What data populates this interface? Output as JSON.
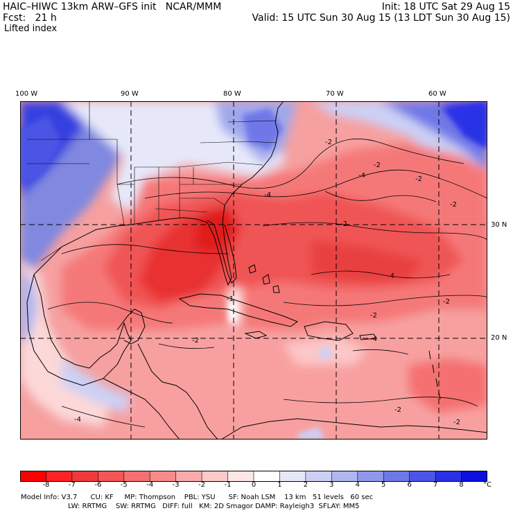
{
  "header": {
    "title_left": "HAIC–HIWC 13km ARW–GFS init   NCAR/MMM",
    "init_right": "Init: 18 UTC Sat 29 Aug 15",
    "fcst_left": "Fcst:   21 h",
    "valid_right": "Valid: 15 UTC Sun 30 Aug 15 (13 LDT Sun 30 Aug 15)",
    "field_name": "Lifted index"
  },
  "map": {
    "lon_labels": [
      "100 W",
      "90 W",
      "80 W",
      "70 W",
      "60 W"
    ],
    "lat_labels": [
      "30 N",
      "20 N"
    ],
    "contour_labels": [
      "-4",
      "-4",
      "-2",
      "-2",
      "-2",
      "-2",
      "-4",
      "-2",
      "-1",
      "-2",
      "-4",
      "-4",
      "-2",
      "-2",
      "-2",
      "-2"
    ]
  },
  "colorbar": {
    "tick_labels": [
      "-8",
      "-7",
      "-6",
      "-5",
      "-4",
      "-3",
      "-2",
      "-1",
      "0",
      "1",
      "2",
      "3",
      "4",
      "5",
      "6",
      "7",
      "8"
    ],
    "unit": "°C",
    "colors": [
      "#ff0000",
      "#ff2222",
      "#f03a3a",
      "#f55555",
      "#f57070",
      "#f88a8a",
      "#faaaaa",
      "#fcc8c8",
      "#fde6e6",
      "#ffffff",
      "#e6e8fa",
      "#ccd0f5",
      "#b0b6f0",
      "#9098ec",
      "#6f78e8",
      "#4c55e5",
      "#2a30e5",
      "#0b10e0"
    ]
  },
  "footer": {
    "line1": "Model Info: V3.7      CU: KF     MP: Thompson    PBL: YSU      SF: Noah LSM    13 km   51 levels   60 sec",
    "line2": "LW: RRTMG    SW: RRTMG   DIFF: full   KM: 2D Smagor DAMP: Rayleigh3  SFLAY: MM5"
  }
}
